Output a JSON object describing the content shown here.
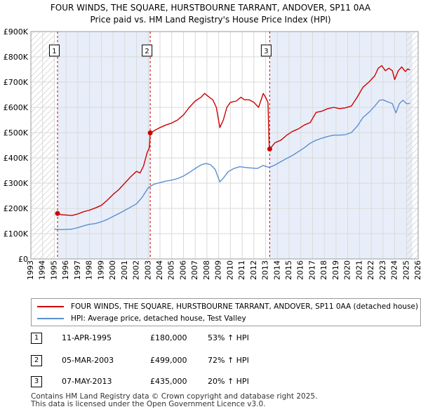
{
  "chart_data": {
    "type": "line",
    "title": "FOUR WINDS, THE SQUARE, HURSTBOURNE TARRANT, ANDOVER, SP11 0AA",
    "subtitle": "Price paid vs. HM Land Registry's House Price Index (HPI)",
    "xlabel": "",
    "ylabel": "",
    "xlim": [
      1993,
      2026
    ],
    "ylim": [
      0,
      900000
    ],
    "y_ticks": [
      {
        "value": 0,
        "label": "£0"
      },
      {
        "value": 100000,
        "label": "£100K"
      },
      {
        "value": 200000,
        "label": "£200K"
      },
      {
        "value": 300000,
        "label": "£300K"
      },
      {
        "value": 400000,
        "label": "£400K"
      },
      {
        "value": 500000,
        "label": "£500K"
      },
      {
        "value": 600000,
        "label": "£600K"
      },
      {
        "value": 700000,
        "label": "£700K"
      },
      {
        "value": 800000,
        "label": "£800K"
      },
      {
        "value": 900000,
        "label": "£900K"
      }
    ],
    "x_ticks": [
      "1993",
      "1994",
      "1995",
      "1996",
      "1997",
      "1998",
      "1999",
      "2000",
      "2001",
      "2002",
      "2003",
      "2004",
      "2005",
      "2006",
      "2007",
      "2008",
      "2009",
      "2010",
      "2011",
      "2012",
      "2013",
      "2014",
      "2015",
      "2016",
      "2017",
      "2018",
      "2019",
      "2020",
      "2021",
      "2022",
      "2023",
      "2024",
      "2025",
      "2026"
    ],
    "grid": true,
    "colors": {
      "property": "#cc0000",
      "hpi": "#5b8fd1",
      "shade": "#e8eef9",
      "vline": "#cc0000",
      "grid": "#d9d9d9"
    },
    "shaded_periods": [
      [
        1995.27,
        2003.17
      ],
      [
        2013.35,
        2025.5
      ]
    ],
    "hatched_ranges": [
      [
        1993,
        1995.0
      ],
      [
        2025.0,
        2026
      ]
    ],
    "series": [
      {
        "name": "FOUR WINDS, THE SQUARE, HURSTBOURNE TARRANT, ANDOVER, SP11 0AA (detached house)",
        "color": "#cc0000",
        "points": [
          [
            1995.27,
            180000
          ],
          [
            1995.6,
            175000
          ],
          [
            1996.0,
            174000
          ],
          [
            1996.5,
            172000
          ],
          [
            1997.0,
            178000
          ],
          [
            1997.5,
            187000
          ],
          [
            1998.0,
            193000
          ],
          [
            1998.5,
            202000
          ],
          [
            1999.0,
            212000
          ],
          [
            1999.5,
            232000
          ],
          [
            2000.0,
            255000
          ],
          [
            2000.5,
            275000
          ],
          [
            2001.0,
            300000
          ],
          [
            2001.5,
            325000
          ],
          [
            2002.0,
            347000
          ],
          [
            2002.3,
            340000
          ],
          [
            2002.6,
            368000
          ],
          [
            2002.9,
            420000
          ],
          [
            2003.1,
            440000
          ],
          [
            2003.17,
            499000
          ],
          [
            2003.6,
            510000
          ],
          [
            2004.0,
            520000
          ],
          [
            2004.5,
            530000
          ],
          [
            2005.0,
            538000
          ],
          [
            2005.5,
            550000
          ],
          [
            2006.0,
            570000
          ],
          [
            2006.5,
            600000
          ],
          [
            2007.0,
            625000
          ],
          [
            2007.5,
            640000
          ],
          [
            2007.8,
            655000
          ],
          [
            2008.2,
            640000
          ],
          [
            2008.5,
            630000
          ],
          [
            2008.8,
            600000
          ],
          [
            2009.1,
            520000
          ],
          [
            2009.4,
            550000
          ],
          [
            2009.7,
            600000
          ],
          [
            2010.0,
            620000
          ],
          [
            2010.5,
            625000
          ],
          [
            2010.9,
            640000
          ],
          [
            2011.2,
            630000
          ],
          [
            2011.6,
            630000
          ],
          [
            2012.0,
            620000
          ],
          [
            2012.4,
            600000
          ],
          [
            2012.8,
            655000
          ],
          [
            2013.0,
            640000
          ],
          [
            2013.2,
            620000
          ],
          [
            2013.3,
            450000
          ],
          [
            2013.35,
            435000
          ],
          [
            2013.8,
            460000
          ],
          [
            2014.3,
            470000
          ],
          [
            2014.8,
            490000
          ],
          [
            2015.3,
            505000
          ],
          [
            2015.8,
            515000
          ],
          [
            2016.3,
            530000
          ],
          [
            2016.8,
            540000
          ],
          [
            2017.3,
            580000
          ],
          [
            2017.8,
            585000
          ],
          [
            2018.3,
            595000
          ],
          [
            2018.8,
            600000
          ],
          [
            2019.3,
            595000
          ],
          [
            2019.8,
            598000
          ],
          [
            2020.3,
            605000
          ],
          [
            2020.8,
            640000
          ],
          [
            2021.3,
            680000
          ],
          [
            2021.8,
            700000
          ],
          [
            2022.3,
            725000
          ],
          [
            2022.6,
            755000
          ],
          [
            2022.9,
            765000
          ],
          [
            2023.2,
            745000
          ],
          [
            2023.5,
            755000
          ],
          [
            2023.8,
            745000
          ],
          [
            2024.0,
            710000
          ],
          [
            2024.3,
            745000
          ],
          [
            2024.6,
            760000
          ],
          [
            2024.9,
            742000
          ],
          [
            2025.1,
            752000
          ],
          [
            2025.3,
            748000
          ]
        ]
      },
      {
        "name": "HPI: Average price, detached house, Test Valley",
        "color": "#5b8fd1",
        "points": [
          [
            1995.0,
            118000
          ],
          [
            1995.5,
            116000
          ],
          [
            1996.0,
            117000
          ],
          [
            1996.5,
            118000
          ],
          [
            1997.0,
            124000
          ],
          [
            1997.5,
            131000
          ],
          [
            1998.0,
            137000
          ],
          [
            1998.5,
            140000
          ],
          [
            1999.0,
            147000
          ],
          [
            1999.5,
            156000
          ],
          [
            2000.0,
            168000
          ],
          [
            2000.5,
            180000
          ],
          [
            2001.0,
            192000
          ],
          [
            2001.5,
            205000
          ],
          [
            2002.0,
            218000
          ],
          [
            2002.5,
            245000
          ],
          [
            2003.0,
            282000
          ],
          [
            2003.5,
            296000
          ],
          [
            2004.0,
            302000
          ],
          [
            2004.5,
            308000
          ],
          [
            2005.0,
            312000
          ],
          [
            2005.5,
            318000
          ],
          [
            2006.0,
            328000
          ],
          [
            2006.5,
            342000
          ],
          [
            2007.0,
            358000
          ],
          [
            2007.5,
            372000
          ],
          [
            2007.9,
            378000
          ],
          [
            2008.3,
            373000
          ],
          [
            2008.7,
            355000
          ],
          [
            2009.1,
            305000
          ],
          [
            2009.4,
            320000
          ],
          [
            2009.8,
            345000
          ],
          [
            2010.3,
            358000
          ],
          [
            2010.8,
            365000
          ],
          [
            2011.3,
            362000
          ],
          [
            2011.8,
            360000
          ],
          [
            2012.3,
            358000
          ],
          [
            2012.8,
            370000
          ],
          [
            2013.3,
            362000
          ],
          [
            2013.8,
            372000
          ],
          [
            2014.3,
            385000
          ],
          [
            2014.8,
            398000
          ],
          [
            2015.3,
            410000
          ],
          [
            2015.8,
            425000
          ],
          [
            2016.3,
            440000
          ],
          [
            2016.8,
            458000
          ],
          [
            2017.3,
            470000
          ],
          [
            2017.8,
            478000
          ],
          [
            2018.3,
            485000
          ],
          [
            2018.8,
            490000
          ],
          [
            2019.3,
            490000
          ],
          [
            2019.8,
            492000
          ],
          [
            2020.3,
            500000
          ],
          [
            2020.8,
            525000
          ],
          [
            2021.3,
            560000
          ],
          [
            2021.8,
            580000
          ],
          [
            2022.3,
            605000
          ],
          [
            2022.7,
            628000
          ],
          [
            2023.0,
            630000
          ],
          [
            2023.4,
            622000
          ],
          [
            2023.8,
            615000
          ],
          [
            2024.1,
            578000
          ],
          [
            2024.4,
            615000
          ],
          [
            2024.7,
            628000
          ],
          [
            2025.0,
            615000
          ],
          [
            2025.3,
            615000
          ]
        ]
      }
    ],
    "annotations": [
      {
        "label": "1",
        "x": 1995.27,
        "y": 180000,
        "box_x": 1995.0
      },
      {
        "label": "2",
        "x": 2003.17,
        "y": 499000,
        "box_x": 2002.9
      },
      {
        "label": "3",
        "x": 2013.35,
        "y": 435000,
        "box_x": 2013.05
      }
    ]
  },
  "legend": [
    {
      "label": "FOUR WINDS, THE SQUARE, HURSTBOURNE TARRANT, ANDOVER, SP11 0AA (detached house)",
      "color": "#cc0000"
    },
    {
      "label": "HPI: Average price, detached house, Test Valley",
      "color": "#5b8fd1"
    }
  ],
  "sales": [
    {
      "num": "1",
      "date": "11-APR-1995",
      "price": "£180,000",
      "hpi": "53% ↑ HPI"
    },
    {
      "num": "2",
      "date": "05-MAR-2003",
      "price": "£499,000",
      "hpi": "72% ↑ HPI"
    },
    {
      "num": "3",
      "date": "07-MAY-2013",
      "price": "£435,000",
      "hpi": "20% ↑ HPI"
    }
  ],
  "footer": {
    "line1": "Contains HM Land Registry data © Crown copyright and database right 2025.",
    "line2": "This data is licensed under the Open Government Licence v3.0."
  }
}
